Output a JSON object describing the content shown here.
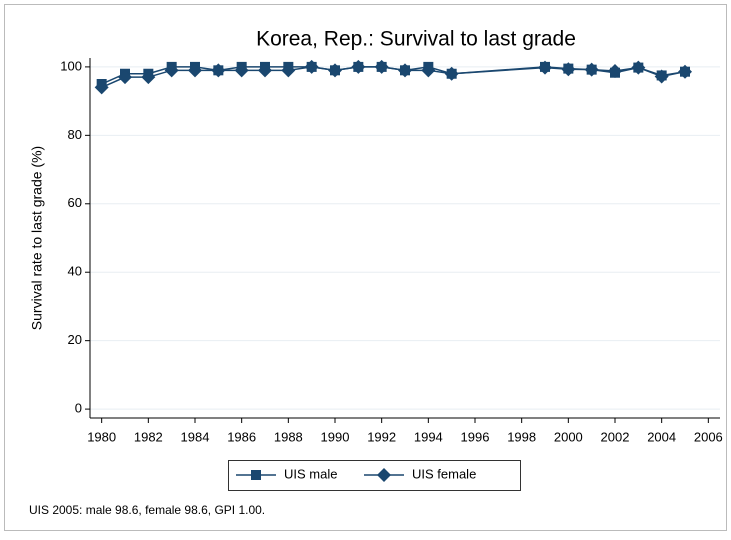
{
  "chart_data": {
    "type": "line",
    "title": "Korea, Rep.: Survival to last grade",
    "ylabel": "Survival rate to last grade (%)",
    "note": "UIS 2005: male 98.6, female 98.6, GPI 1.00.",
    "x": [
      1980,
      1981,
      1982,
      1983,
      1984,
      1985,
      1986,
      1987,
      1988,
      1989,
      1990,
      1991,
      1992,
      1993,
      1994,
      1995,
      1999,
      2000,
      2001,
      2002,
      2003,
      2004,
      2005
    ],
    "series": [
      {
        "name": "UIS male",
        "color": "#1a476f",
        "marker": "square",
        "values": [
          95,
          98,
          98,
          100,
          100,
          99,
          100,
          100,
          100,
          100,
          99,
          100,
          100,
          99,
          100,
          98,
          100,
          99.5,
          99.2,
          98.3,
          99.8,
          97.5,
          98.6
        ]
      },
      {
        "name": "UIS female",
        "color": "#1a476f",
        "marker": "diamond",
        "values": [
          94,
          97,
          97,
          99,
          99,
          99,
          99,
          99,
          99,
          100,
          99,
          100,
          100,
          99,
          99,
          98,
          99.8,
          99.3,
          99.2,
          98.8,
          99.8,
          97.2,
          98.6
        ]
      }
    ],
    "xlim": [
      1979.5,
      2006.5
    ],
    "xticks": [
      1980,
      1982,
      1984,
      1986,
      1988,
      1990,
      1992,
      1994,
      1996,
      1998,
      2000,
      2002,
      2004,
      2006
    ],
    "ylim": [
      -2.6,
      102.6
    ],
    "yticks": [
      0,
      20,
      40,
      60,
      80,
      100
    ],
    "grid": true,
    "legend": "bottom"
  }
}
